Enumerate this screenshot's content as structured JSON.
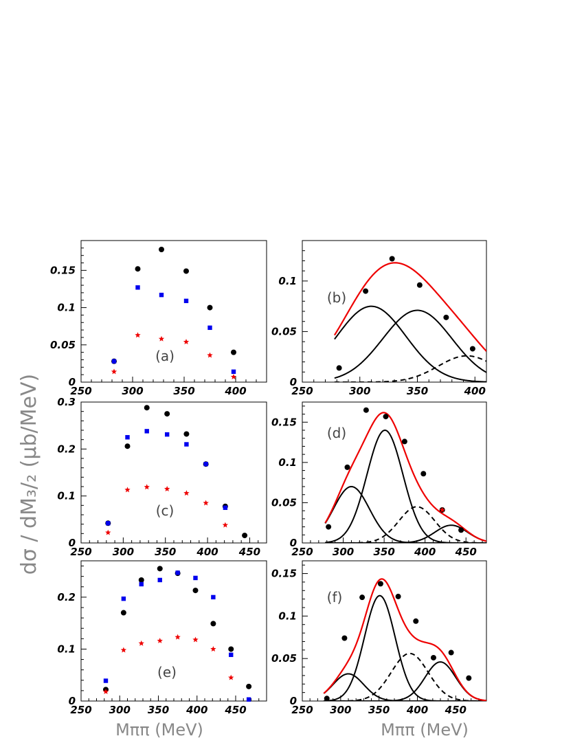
{
  "figure": {
    "ylabel": "dσ / dM₃/₂  (μb/MeV)",
    "xlabel": "Mππ  (MeV)"
  },
  "chart_data": [
    {
      "id": "a",
      "panel_label": "(a)",
      "type": "scatter",
      "xlim": [
        250,
        430
      ],
      "ylim": [
        0,
        0.19
      ],
      "xticks": [
        250,
        300,
        350,
        400
      ],
      "yticks": [
        0,
        0.05,
        0.1,
        0.15
      ],
      "xtick_labels": [
        "250",
        "300",
        "350",
        "400"
      ],
      "ytick_labels": [
        "0",
        "0.05",
        "0.1",
        "0.15"
      ],
      "series": [
        {
          "name": "black",
          "marker": "circle",
          "color": "#000000",
          "x": [
            282,
            305,
            328,
            352,
            375,
            398
          ],
          "y": [
            0.028,
            0.152,
            0.178,
            0.149,
            0.1,
            0.04
          ]
        },
        {
          "name": "blue",
          "marker": "square",
          "color": "#0000ee",
          "x": [
            282,
            305,
            328,
            352,
            375,
            398
          ],
          "y": [
            0.028,
            0.127,
            0.117,
            0.109,
            0.073,
            0.014
          ]
        },
        {
          "name": "red",
          "marker": "star",
          "color": "#ee0000",
          "x": [
            282,
            305,
            328,
            352,
            375,
            398
          ],
          "y": [
            0.014,
            0.063,
            0.058,
            0.054,
            0.036,
            0.007
          ]
        }
      ],
      "curves": []
    },
    {
      "id": "b",
      "panel_label": "(b)",
      "type": "scatter",
      "xlim": [
        250,
        410
      ],
      "ylim": [
        0,
        0.14
      ],
      "xticks": [
        250,
        300,
        350,
        400
      ],
      "yticks": [
        0,
        0.05,
        0.1
      ],
      "xtick_labels": [
        "250",
        "300",
        "350",
        "400"
      ],
      "ytick_labels": [
        "0",
        "0.05",
        "0.1"
      ],
      "series": [
        {
          "name": "data",
          "marker": "circle",
          "color": "#000000",
          "x": [
            282,
            305,
            328,
            352,
            375,
            398
          ],
          "y": [
            0.014,
            0.09,
            0.122,
            0.096,
            0.064,
            0.033
          ]
        }
      ],
      "curves": [
        {
          "name": "gauss-1",
          "kind": "gaussian",
          "amp": 0.075,
          "mu": 310,
          "sigma": 30,
          "x_range": [
            278,
            410
          ],
          "style": "solid",
          "color": "#000000"
        },
        {
          "name": "gauss-2",
          "kind": "gaussian",
          "amp": 0.071,
          "mu": 350,
          "sigma": 30,
          "x_range": [
            278,
            410
          ],
          "style": "solid",
          "color": "#000000"
        },
        {
          "name": "gauss-3",
          "kind": "gaussian",
          "amp": 0.026,
          "mu": 393,
          "sigma": 25,
          "x_range": [
            278,
            410
          ],
          "style": "dashed",
          "color": "#000000"
        },
        {
          "name": "total",
          "kind": "sum",
          "x_range": [
            278,
            410
          ],
          "style": "solid",
          "color": "#ee0000"
        }
      ]
    },
    {
      "id": "c",
      "panel_label": "(c)",
      "type": "scatter",
      "xlim": [
        250,
        470
      ],
      "ylim": [
        0,
        0.3
      ],
      "xticks": [
        250,
        300,
        350,
        400,
        450
      ],
      "yticks": [
        0,
        0.1,
        0.2,
        0.3
      ],
      "xtick_labels": [
        "250",
        "300",
        "350",
        "400",
        "450"
      ],
      "ytick_labels": [
        "0",
        "0.1",
        "0.2",
        "0.3"
      ],
      "series": [
        {
          "name": "black",
          "marker": "circle",
          "color": "#000000",
          "x": [
            282,
            305,
            328,
            352,
            375,
            398,
            421,
            444
          ],
          "y": [
            0.042,
            0.206,
            0.288,
            0.275,
            0.232,
            0.168,
            0.078,
            0.016
          ]
        },
        {
          "name": "blue",
          "marker": "square",
          "color": "#0000ee",
          "x": [
            282,
            305,
            328,
            352,
            375,
            398,
            421
          ],
          "y": [
            0.042,
            0.225,
            0.238,
            0.231,
            0.21,
            0.168,
            0.075
          ]
        },
        {
          "name": "red",
          "marker": "star",
          "color": "#ee0000",
          "x": [
            282,
            305,
            328,
            352,
            375,
            398,
            421
          ],
          "y": [
            0.022,
            0.113,
            0.119,
            0.115,
            0.106,
            0.085,
            0.038
          ]
        }
      ],
      "curves": []
    },
    {
      "id": "d",
      "panel_label": "(d)",
      "type": "scatter",
      "xlim": [
        250,
        475
      ],
      "ylim": [
        0,
        0.175
      ],
      "xticks": [
        250,
        300,
        350,
        400,
        450
      ],
      "yticks": [
        0,
        0.05,
        0.1,
        0.15
      ],
      "xtick_labels": [
        "250",
        "300",
        "350",
        "400",
        "450"
      ],
      "ytick_labels": [
        "0",
        "0.05",
        "0.1",
        "0.15"
      ],
      "series": [
        {
          "name": "data",
          "marker": "circle",
          "color": "#000000",
          "x": [
            282,
            305,
            328,
            352,
            375,
            398,
            421,
            444
          ],
          "y": [
            0.02,
            0.094,
            0.165,
            0.157,
            0.126,
            0.086,
            0.041,
            0.016
          ]
        },
        {
          "name": "red-point",
          "marker": "star",
          "color": "#ee0000",
          "x": [
            421
          ],
          "y": [
            0.041
          ]
        }
      ],
      "curves": [
        {
          "name": "gauss-1",
          "kind": "gaussian",
          "amp": 0.07,
          "mu": 310,
          "sigma": 22,
          "x_range": [
            278,
            475
          ],
          "style": "solid",
          "color": "#000000"
        },
        {
          "name": "gauss-2",
          "kind": "gaussian",
          "amp": 0.14,
          "mu": 351,
          "sigma": 22,
          "x_range": [
            278,
            475
          ],
          "style": "solid",
          "color": "#000000"
        },
        {
          "name": "gauss-3",
          "kind": "gaussian",
          "amp": 0.045,
          "mu": 390,
          "sigma": 22,
          "x_range": [
            278,
            475
          ],
          "style": "dashed",
          "color": "#000000"
        },
        {
          "name": "gauss-4",
          "kind": "gaussian",
          "amp": 0.022,
          "mu": 432,
          "sigma": 20,
          "x_range": [
            278,
            475
          ],
          "style": "solid",
          "color": "#000000"
        },
        {
          "name": "total",
          "kind": "sum",
          "x_range": [
            278,
            475
          ],
          "style": "solid",
          "color": "#ee0000"
        }
      ]
    },
    {
      "id": "e",
      "panel_label": "(e)",
      "type": "scatter",
      "xlim": [
        250,
        490
      ],
      "ylim": [
        0,
        0.27
      ],
      "xticks": [
        250,
        300,
        350,
        400,
        450
      ],
      "yticks": [
        0,
        0.1,
        0.2
      ],
      "xtick_labels": [
        "250",
        "300",
        "350",
        "400",
        "450"
      ],
      "ytick_labels": [
        "0",
        "0.1",
        "0.2"
      ],
      "series": [
        {
          "name": "black",
          "marker": "circle",
          "color": "#000000",
          "x": [
            282,
            305,
            328,
            352,
            375,
            398,
            421,
            444,
            467
          ],
          "y": [
            0.022,
            0.17,
            0.233,
            0.255,
            0.246,
            0.213,
            0.149,
            0.1,
            0.028
          ]
        },
        {
          "name": "blue",
          "marker": "square",
          "color": "#0000ee",
          "x": [
            282,
            305,
            328,
            352,
            375,
            398,
            421,
            444,
            467
          ],
          "y": [
            0.039,
            0.197,
            0.225,
            0.233,
            0.247,
            0.237,
            0.2,
            0.089,
            0.003
          ]
        },
        {
          "name": "red",
          "marker": "star",
          "color": "#ee0000",
          "x": [
            282,
            305,
            328,
            352,
            375,
            398,
            421,
            444
          ],
          "y": [
            0.018,
            0.098,
            0.111,
            0.116,
            0.123,
            0.118,
            0.1,
            0.045
          ]
        }
      ],
      "curves": []
    },
    {
      "id": "f",
      "panel_label": "(f)",
      "type": "scatter",
      "xlim": [
        250,
        490
      ],
      "ylim": [
        0,
        0.165
      ],
      "xticks": [
        250,
        300,
        350,
        400,
        450
      ],
      "yticks": [
        0,
        0.05,
        0.1,
        0.15
      ],
      "xtick_labels": [
        "250",
        "300",
        "350",
        "400",
        "450"
      ],
      "ytick_labels": [
        "0",
        "0.05",
        "0.1",
        "0.15"
      ],
      "series": [
        {
          "name": "data",
          "marker": "circle",
          "color": "#000000",
          "x": [
            282,
            305,
            328,
            352,
            375,
            398,
            421,
            444,
            467
          ],
          "y": [
            0.003,
            0.074,
            0.122,
            0.138,
            0.123,
            0.094,
            0.051,
            0.057,
            0.027
          ]
        }
      ],
      "curves": [
        {
          "name": "gauss-1",
          "kind": "gaussian",
          "amp": 0.032,
          "mu": 310,
          "sigma": 20,
          "x_range": [
            278,
            490
          ],
          "style": "solid",
          "color": "#000000"
        },
        {
          "name": "gauss-2",
          "kind": "gaussian",
          "amp": 0.124,
          "mu": 351,
          "sigma": 20,
          "x_range": [
            278,
            490
          ],
          "style": "solid",
          "color": "#000000"
        },
        {
          "name": "gauss-3",
          "kind": "gaussian",
          "amp": 0.056,
          "mu": 390,
          "sigma": 24,
          "x_range": [
            278,
            490
          ],
          "style": "dashed",
          "color": "#000000"
        },
        {
          "name": "gauss-4",
          "kind": "gaussian",
          "amp": 0.046,
          "mu": 430,
          "sigma": 20,
          "x_range": [
            278,
            490
          ],
          "style": "solid",
          "color": "#000000"
        },
        {
          "name": "total",
          "kind": "sum",
          "x_range": [
            278,
            490
          ],
          "style": "solid",
          "color": "#ee0000"
        }
      ]
    }
  ]
}
